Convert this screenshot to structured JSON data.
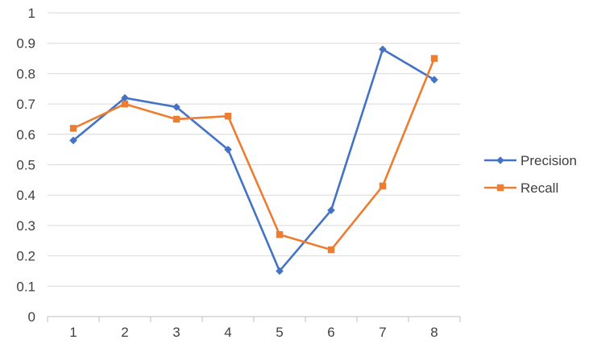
{
  "chart_data": {
    "type": "line",
    "title": "",
    "xlabel": "",
    "ylabel": "",
    "categories": [
      "1",
      "2",
      "3",
      "4",
      "5",
      "6",
      "7",
      "8"
    ],
    "ylim": [
      0,
      1
    ],
    "yticks": [
      "0",
      "0.1",
      "0.2",
      "0.3",
      "0.4",
      "0.5",
      "0.6",
      "0.7",
      "0.8",
      "0.9",
      "1"
    ],
    "grid": "horizontal",
    "legend_position": "right",
    "series": [
      {
        "name": "Precision",
        "color": "#4472C4",
        "marker": "diamond",
        "values": [
          0.58,
          0.72,
          0.69,
          0.55,
          0.15,
          0.35,
          0.88,
          0.78
        ]
      },
      {
        "name": "Recall",
        "color": "#ED7D31",
        "marker": "square",
        "values": [
          0.62,
          0.7,
          0.65,
          0.66,
          0.27,
          0.22,
          0.43,
          0.85
        ]
      }
    ]
  }
}
